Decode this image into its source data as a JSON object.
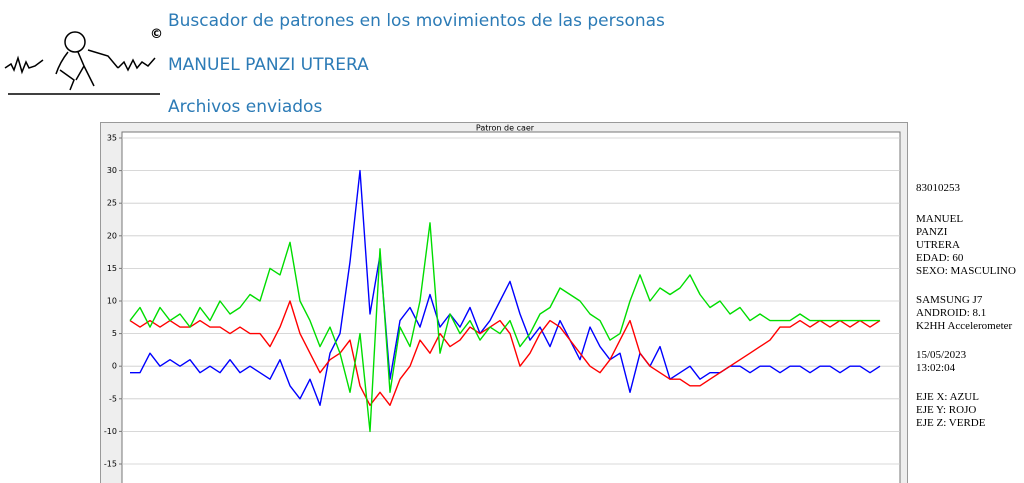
{
  "header": {
    "title": "Buscador de patrones en los movimientos de las personas",
    "user": "MANUEL PANZI UTRERA",
    "link": "Archivos enviados"
  },
  "chart_data": {
    "type": "line",
    "title": "Patron de caer",
    "ylim": [
      -15,
      35
    ],
    "yticks": [
      -15,
      -10,
      -5,
      0,
      5,
      10,
      15,
      20,
      25,
      30,
      35
    ],
    "grid": true,
    "series": [
      {
        "name": "EJE X",
        "color": "#0000ff",
        "values": [
          -1,
          -1,
          2,
          0,
          1,
          0,
          1,
          -1,
          0,
          -1,
          1,
          -1,
          0,
          -1,
          -2,
          1,
          -3,
          -5,
          -2,
          -6,
          2,
          5,
          16,
          30,
          8,
          17,
          -2,
          7,
          9,
          6,
          11,
          6,
          8,
          6,
          9,
          5,
          7,
          10,
          13,
          8,
          4,
          6,
          3,
          7,
          4,
          1,
          6,
          3,
          1,
          2,
          -4,
          2,
          0,
          3,
          -2,
          -1,
          0,
          -2,
          -1,
          -1,
          0,
          0,
          -1,
          0,
          0,
          -1,
          0,
          0,
          -1,
          0,
          0,
          -1,
          0,
          0,
          -1,
          0
        ]
      },
      {
        "name": "EJE Y",
        "color": "#ff0000",
        "values": [
          7,
          6,
          7,
          6,
          7,
          6,
          6,
          7,
          6,
          6,
          5,
          6,
          5,
          5,
          3,
          6,
          10,
          5,
          2,
          -1,
          1,
          2,
          4,
          -3,
          -6,
          -4,
          -6,
          -2,
          0,
          4,
          2,
          5,
          3,
          4,
          6,
          5,
          6,
          7,
          5,
          0,
          2,
          5,
          7,
          6,
          4,
          2,
          0,
          -1,
          1,
          4,
          7,
          2,
          0,
          -1,
          -2,
          -2,
          -3,
          -3,
          -2,
          -1,
          0,
          1,
          2,
          3,
          4,
          6,
          6,
          7,
          6,
          7,
          6,
          7,
          6,
          7,
          6,
          7
        ]
      },
      {
        "name": "EJE Z",
        "color": "#00dd00",
        "values": [
          7,
          9,
          6,
          9,
          7,
          8,
          6,
          9,
          7,
          10,
          8,
          9,
          11,
          10,
          15,
          14,
          19,
          10,
          7,
          3,
          6,
          2,
          -4,
          5,
          -10,
          18,
          -4,
          6,
          3,
          10,
          22,
          2,
          8,
          5,
          7,
          4,
          6,
          5,
          7,
          3,
          5,
          8,
          9,
          12,
          11,
          10,
          8,
          7,
          4,
          5,
          10,
          14,
          10,
          12,
          11,
          12,
          14,
          11,
          9,
          10,
          8,
          9,
          7,
          8,
          7,
          7,
          7,
          8,
          7,
          7,
          7,
          7,
          7,
          7,
          7,
          7
        ]
      }
    ]
  },
  "info": {
    "id": "83010253",
    "person": [
      "MANUEL",
      "PANZI",
      "UTRERA",
      "EDAD: 60",
      "SEXO: MASCULINO"
    ],
    "device": [
      "SAMSUNG J7",
      "ANDROID: 8.1",
      "K2HH Accelerometer"
    ],
    "datetime": [
      "15/05/2023",
      "13:02:04"
    ],
    "axes": [
      "EJE X: AZUL",
      "EJE Y: ROJO",
      "EJE Z: VERDE"
    ]
  }
}
